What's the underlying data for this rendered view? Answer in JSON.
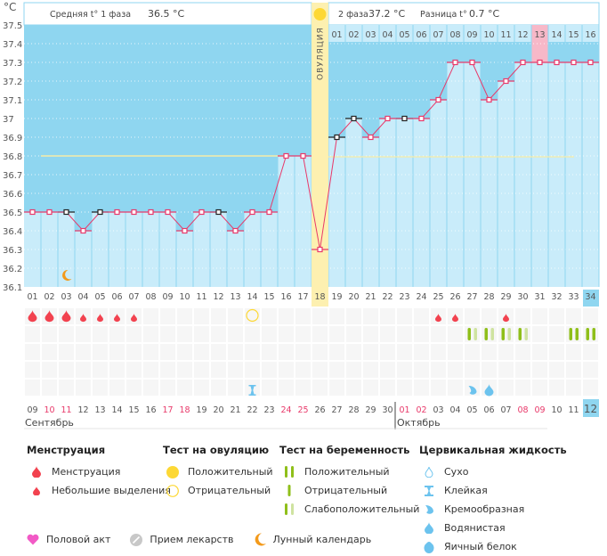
{
  "header": {
    "unit_label": "°C",
    "phase1_label": "Средняя t° 1 фаза",
    "phase1_value": "36.5 °C",
    "phase2_label": "2 фаза",
    "phase2_value": "37.2 °C",
    "difference_label": "Разница t°",
    "difference_value": "0.7 °C",
    "ovulation_label": "ОВУЛЯЦИЯ"
  },
  "colors": {
    "background_band": "#8fd6f0",
    "fill_below": "#c9ecfa",
    "line": "#e8396a",
    "ovulation": "#fdf0b0",
    "highlight_day": "#f7b8c8",
    "current_day": "#8fd6f0",
    "cover_line": "#f5eca8",
    "menstruation": "#f2424f",
    "pregnancy_positive": "#8fbf1a",
    "pregnancy_weak": "#cfe3a0",
    "cervical": "#6cc3ee",
    "ovulation_test": "#fdd835",
    "moon": "#f39a1b"
  },
  "chart_data": {
    "type": "line",
    "title": "",
    "ylabel": "°C",
    "ylim": [
      36.1,
      37.5
    ],
    "yticks": [
      "37.5",
      "37.4",
      "37.3",
      "37.2",
      "37.1",
      "37",
      "36.9",
      "36.8",
      "36.7",
      "36.6",
      "36.5",
      "36.4",
      "36.3",
      "36.2",
      "36.1"
    ],
    "cycle_days": [
      "01",
      "02",
      "03",
      "04",
      "05",
      "06",
      "07",
      "08",
      "09",
      "10",
      "11",
      "12",
      "13",
      "14",
      "15",
      "16",
      "17",
      "18",
      "19",
      "20",
      "21",
      "22",
      "23",
      "24",
      "25",
      "26",
      "27",
      "28",
      "29",
      "30",
      "31",
      "32",
      "33",
      "34"
    ],
    "temperatures": [
      36.5,
      36.5,
      36.5,
      36.4,
      36.5,
      36.5,
      36.5,
      36.5,
      36.5,
      36.4,
      36.5,
      36.5,
      36.4,
      36.5,
      36.5,
      36.8,
      36.8,
      36.3,
      36.9,
      37.0,
      36.9,
      37.0,
      37.0,
      37.0,
      37.1,
      37.3,
      37.3,
      37.1,
      37.2,
      37.3,
      37.3,
      37.3,
      37.3,
      37.3
    ],
    "excluded_points_days": [
      3,
      5,
      12,
      19,
      20,
      23
    ],
    "cover_line_phase1": 36.8,
    "cover_line_phase2": 36.85,
    "ovulation_day": 18,
    "phase2_day_labels": [
      "01",
      "02",
      "03",
      "04",
      "05",
      "06",
      "07",
      "08",
      "09",
      "10",
      "11",
      "12",
      "13",
      "14",
      "15",
      "16"
    ],
    "highlight_phase2_day": "13",
    "current_cycle_day": "34",
    "calendar_dates": [
      "09",
      "10",
      "11",
      "12",
      "13",
      "14",
      "15",
      "16",
      "17",
      "18",
      "19",
      "20",
      "21",
      "22",
      "23",
      "24",
      "25",
      "26",
      "27",
      "28",
      "29",
      "30",
      "01",
      "02",
      "03",
      "04",
      "05",
      "06",
      "07",
      "08",
      "09",
      "10",
      "11",
      "12"
    ],
    "weekend_indices": [
      1,
      2,
      8,
      9,
      15,
      16,
      22,
      23,
      29,
      30
    ],
    "months": [
      {
        "name": "Сентябрь",
        "start_index": 0
      },
      {
        "name": "Октябрь",
        "start_index": 22
      }
    ],
    "current_date": "12",
    "menstruation": [
      {
        "day": 1,
        "type": "heavy"
      },
      {
        "day": 2,
        "type": "heavy"
      },
      {
        "day": 3,
        "type": "heavy"
      },
      {
        "day": 4,
        "type": "light"
      },
      {
        "day": 5,
        "type": "light"
      },
      {
        "day": 6,
        "type": "light"
      },
      {
        "day": 7,
        "type": "light"
      },
      {
        "day": 25,
        "type": "light"
      },
      {
        "day": 26,
        "type": "light"
      },
      {
        "day": 29,
        "type": "light"
      }
    ],
    "ovulation_tests": [
      {
        "day": 14,
        "result": "negative"
      }
    ],
    "pregnancy_tests": [
      {
        "day": 27,
        "result": "weak"
      },
      {
        "day": 28,
        "result": "weak"
      },
      {
        "day": 29,
        "result": "weak"
      },
      {
        "day": 30,
        "result": "weak"
      },
      {
        "day": 33,
        "result": "positive"
      },
      {
        "day": 34,
        "result": "positive"
      }
    ],
    "cervical_fluid": [
      {
        "day": 14,
        "type": "sticky"
      },
      {
        "day": 27,
        "type": "creamy"
      },
      {
        "day": 28,
        "type": "watery"
      }
    ],
    "moon_days": [
      3
    ]
  },
  "legend": {
    "menstruation": {
      "title": "Менструация",
      "items": [
        "Менструация",
        "Небольшие выделения"
      ]
    },
    "ovulation_test": {
      "title": "Тест на овуляцию",
      "items": [
        "Положительный",
        "Отрицательный"
      ]
    },
    "pregnancy_test": {
      "title": "Тест на беременность",
      "items": [
        "Положительный",
        "Отрицательный",
        "Слабоположительный"
      ]
    },
    "cervical": {
      "title": "Цервикальная жидкость",
      "items": [
        "Сухо",
        "Клейкая",
        "Кремообразная",
        "Водянистая",
        "Яичный белок"
      ]
    },
    "bottom": [
      "Половой акт",
      "Прием лекарств",
      "Лунный календарь"
    ]
  }
}
